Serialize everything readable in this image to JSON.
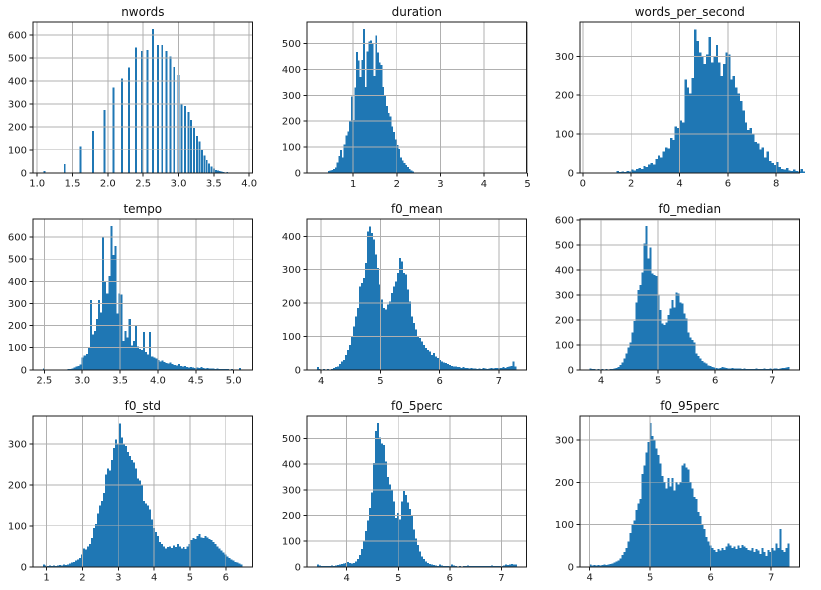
{
  "figure": {
    "background": "#ffffff",
    "bar_color": "#1f77b4",
    "grid_color": "#b0b0b0",
    "spine_color": "#1a1a1a",
    "text_color": "#1a1a1a"
  },
  "chart_data": [
    {
      "type": "bar",
      "subtype": "histogram",
      "title": "nwords",
      "xlim": [
        0.94,
        4.05
      ],
      "ylim": [
        0,
        656
      ],
      "xtick_vals": [
        1.0,
        1.5,
        2.0,
        2.5,
        3.0,
        3.5,
        4.0
      ],
      "xtick_labels": [
        "1.0",
        "1.5",
        "2.0",
        "2.5",
        "3.0",
        "3.5",
        "4.0"
      ],
      "ytick_vals": [
        0,
        100,
        200,
        300,
        400,
        500,
        600
      ],
      "grid": true,
      "bars": {
        "mode": "positions",
        "width": 0.028,
        "positions": [
          1.1,
          1.39,
          1.61,
          1.79,
          1.95,
          2.08,
          2.2,
          2.3,
          2.4,
          2.48,
          2.56,
          2.64,
          2.71,
          2.77,
          2.83,
          2.89,
          2.94,
          3.0,
          3.04,
          3.09,
          3.14,
          3.18,
          3.22,
          3.26,
          3.3,
          3.33,
          3.37,
          3.4,
          3.43,
          3.47,
          3.5,
          3.53,
          3.56,
          3.58,
          3.61,
          3.64,
          3.69,
          3.74,
          3.78,
          3.83,
          3.87,
          3.91
        ],
        "counts": [
          8,
          38,
          115,
          182,
          272,
          370,
          410,
          458,
          545,
          530,
          535,
          625,
          555,
          555,
          530,
          505,
          460,
          425,
          300,
          290,
          265,
          230,
          195,
          160,
          135,
          100,
          75,
          55,
          40,
          28,
          18,
          12,
          9,
          7,
          5,
          4,
          3,
          2,
          2,
          1,
          1,
          1
        ]
      }
    },
    {
      "type": "bar",
      "subtype": "histogram",
      "title": "duration",
      "xlim": [
        -0.06,
        4.98
      ],
      "ylim": [
        0,
        584
      ],
      "xtick_vals": [
        1,
        2,
        3,
        4,
        5
      ],
      "xtick_labels": [
        "1",
        "2",
        "3",
        "4",
        "5"
      ],
      "ytick_vals": [
        0,
        100,
        200,
        300,
        400,
        500
      ],
      "grid": true,
      "bars": {
        "mode": "sequence",
        "start": 0.42,
        "width": 0.0404,
        "counts": [
          6,
          8,
          10,
          14,
          20,
          40,
          65,
          88,
          60,
          110,
          145,
          160,
          200,
          295,
          205,
          330,
          467,
          435,
          370,
          437,
          556,
          333,
          470,
          508,
          512,
          500,
          375,
          532,
          465,
          428,
          418,
          332,
          298,
          258,
          232,
          218,
          180,
          158,
          128,
          108,
          93,
          60,
          47,
          38,
          30,
          22,
          14,
          8,
          5,
          2,
          1,
          0,
          1,
          0,
          0,
          1,
          0,
          0,
          1,
          0,
          0,
          0,
          1,
          0,
          0,
          0,
          0,
          1,
          0,
          0,
          0,
          1,
          0,
          0,
          0,
          0,
          0,
          1,
          0,
          0,
          0,
          0,
          0,
          1,
          0,
          0,
          0,
          0,
          0,
          0,
          1,
          0,
          0,
          0,
          0,
          0,
          0,
          0,
          0,
          0,
          1,
          0,
          0,
          0,
          0,
          1
        ]
      }
    },
    {
      "type": "bar",
      "subtype": "histogram",
      "title": "words_per_second",
      "xlim": [
        -0.12,
        8.97
      ],
      "ylim": [
        0,
        389
      ],
      "xtick_vals": [
        0,
        2,
        4,
        6,
        8
      ],
      "xtick_labels": [
        "0",
        "2",
        "4",
        "6",
        "8"
      ],
      "ytick_vals": [
        0,
        100,
        200,
        300
      ],
      "grid": true,
      "bars": {
        "mode": "sequence",
        "start": 0.3,
        "width": 0.1,
        "counts": [
          1,
          0,
          1,
          0,
          0,
          1,
          0,
          1,
          0,
          0,
          1,
          4,
          2,
          3,
          2,
          5,
          3,
          8,
          6,
          10,
          12,
          10,
          18,
          15,
          22,
          25,
          22,
          35,
          45,
          40,
          55,
          65,
          62,
          90,
          85,
          120,
          115,
          135,
          130,
          240,
          220,
          205,
          245,
          370,
          340,
          310,
          300,
          280,
          305,
          350,
          285,
          300,
          330,
          285,
          250,
          280,
          310,
          305,
          240,
          250,
          220,
          205,
          185,
          160,
          130,
          110,
          115,
          100,
          80,
          75,
          60,
          65,
          40,
          55,
          30,
          25,
          20,
          28,
          15,
          10,
          8,
          12,
          6,
          5,
          8,
          4,
          3,
          10,
          3
        ]
      }
    },
    {
      "type": "bar",
      "subtype": "histogram",
      "title": "tempo",
      "xlim": [
        2.35,
        5.25
      ],
      "ylim": [
        0,
        682
      ],
      "xtick_vals": [
        2.5,
        3.0,
        3.5,
        4.0,
        4.5,
        5.0
      ],
      "xtick_labels": [
        "2.5",
        "3.0",
        "3.5",
        "4.0",
        "4.5",
        "5.0"
      ],
      "ytick_vals": [
        0,
        100,
        200,
        300,
        400,
        500,
        600
      ],
      "grid": true,
      "bars": {
        "mode": "sequence",
        "start": 2.48,
        "width": 0.027,
        "counts": [
          5,
          0,
          0,
          0,
          0,
          0,
          0,
          0,
          0,
          0,
          0,
          0,
          3,
          4,
          6,
          10,
          14,
          18,
          24,
          55,
          65,
          72,
          100,
          315,
          160,
          175,
          230,
          315,
          260,
          600,
          400,
          345,
          425,
          650,
          520,
          560,
          255,
          345,
          340,
          130,
          175,
          145,
          230,
          110,
          130,
          200,
          105,
          95,
          90,
          170,
          80,
          70,
          170,
          60,
          55,
          50,
          45,
          38,
          42,
          35,
          30,
          28,
          32,
          25,
          22,
          20,
          25,
          18,
          15,
          18,
          12,
          10,
          12,
          10,
          8,
          10,
          8,
          12,
          7,
          6,
          8,
          5,
          6,
          5,
          4,
          5,
          4,
          3,
          4,
          3,
          3,
          2,
          3,
          2,
          2,
          2,
          8,
          2
        ]
      }
    },
    {
      "type": "bar",
      "subtype": "histogram",
      "title": "f0_mean",
      "xlim": [
        3.76,
        7.47
      ],
      "ylim": [
        0,
        452
      ],
      "xtick_vals": [
        4,
        5,
        6,
        7
      ],
      "xtick_labels": [
        "4",
        "5",
        "6",
        "7"
      ],
      "ytick_vals": [
        0,
        100,
        200,
        300,
        400
      ],
      "grid": true,
      "bars": {
        "mode": "sequence",
        "start": 3.93,
        "width": 0.0337,
        "counts": [
          8,
          2,
          1,
          2,
          1,
          2,
          1,
          2,
          5,
          8,
          10,
          18,
          25,
          30,
          45,
          60,
          75,
          100,
          130,
          160,
          185,
          250,
          260,
          275,
          320,
          415,
          430,
          410,
          390,
          345,
          305,
          255,
          210,
          185,
          180,
          195,
          205,
          230,
          250,
          265,
          290,
          335,
          325,
          290,
          285,
          240,
          205,
          160,
          140,
          120,
          100,
          95,
          85,
          75,
          65,
          60,
          55,
          45,
          50,
          40,
          35,
          30,
          25,
          22,
          20,
          18,
          15,
          12,
          10,
          10,
          8,
          8,
          6,
          8,
          5,
          5,
          4,
          5,
          4,
          4,
          3,
          4,
          3,
          5,
          4,
          3,
          4,
          5,
          4,
          6,
          5,
          6,
          5,
          8,
          6,
          8,
          10,
          12,
          25,
          10
        ]
      }
    },
    {
      "type": "bar",
      "subtype": "histogram",
      "title": "f0_median",
      "xlim": [
        3.63,
        7.48
      ],
      "ylim": [
        0,
        604
      ],
      "xtick_vals": [
        4,
        5,
        6,
        7
      ],
      "xtick_labels": [
        "4",
        "5",
        "6",
        "7"
      ],
      "ytick_vals": [
        0,
        100,
        200,
        300,
        400,
        500,
        600
      ],
      "grid": true,
      "bars": {
        "mode": "sequence",
        "start": 3.8,
        "width": 0.035,
        "counts": [
          5,
          3,
          4,
          2,
          3,
          2,
          3,
          2,
          3,
          2,
          3,
          4,
          5,
          8,
          12,
          20,
          30,
          45,
          65,
          90,
          110,
          150,
          195,
          270,
          320,
          340,
          390,
          505,
          575,
          445,
          490,
          385,
          380,
          375,
          300,
          240,
          185,
          180,
          190,
          220,
          245,
          280,
          250,
          310,
          305,
          270,
          265,
          225,
          205,
          150,
          130,
          120,
          110,
          65,
          55,
          45,
          35,
          30,
          25,
          18,
          15,
          12,
          10,
          8,
          6,
          8,
          12,
          10,
          8,
          6,
          5,
          8,
          6,
          5,
          6,
          5,
          4,
          5,
          4,
          3,
          4,
          3,
          4,
          5,
          4,
          3,
          4,
          5,
          4,
          3,
          5,
          4,
          6,
          5,
          4,
          6,
          8,
          7,
          10,
          12
        ]
      }
    },
    {
      "type": "bar",
      "subtype": "histogram",
      "title": "f0_std",
      "xlim": [
        0.62,
        6.75
      ],
      "ylim": [
        0,
        368
      ],
      "xtick_vals": [
        1,
        2,
        3,
        4,
        5,
        6
      ],
      "xtick_labels": [
        "1",
        "2",
        "3",
        "4",
        "5",
        "6"
      ],
      "ytick_vals": [
        0,
        100,
        200,
        300
      ],
      "grid": true,
      "bars": {
        "mode": "sequence",
        "start": 0.9,
        "width": 0.0557,
        "counts": [
          5,
          3,
          2,
          3,
          2,
          3,
          2,
          3,
          4,
          3,
          5,
          4,
          6,
          8,
          10,
          12,
          15,
          18,
          22,
          30,
          45,
          42,
          50,
          55,
          70,
          95,
          105,
          130,
          150,
          160,
          180,
          225,
          240,
          235,
          260,
          290,
          310,
          300,
          350,
          315,
          300,
          295,
          280,
          270,
          260,
          255,
          240,
          215,
          210,
          200,
          160,
          155,
          150,
          140,
          115,
          95,
          85,
          75,
          60,
          55,
          50,
          45,
          48,
          50,
          46,
          52,
          48,
          55,
          50,
          45,
          48,
          44,
          50,
          55,
          65,
          70,
          68,
          75,
          80,
          72,
          70,
          75,
          72,
          68,
          65,
          60,
          55,
          50,
          45,
          40,
          35,
          30,
          25,
          22,
          18,
          15,
          12,
          10,
          8,
          5
        ]
      }
    },
    {
      "type": "bar",
      "subtype": "histogram",
      "title": "f0_5perc",
      "xlim": [
        3.23,
        7.49
      ],
      "ylim": [
        0,
        588
      ],
      "xtick_vals": [
        4,
        5,
        6,
        7
      ],
      "xtick_labels": [
        "4",
        "5",
        "6",
        "7"
      ],
      "ytick_vals": [
        0,
        100,
        200,
        300,
        400,
        500
      ],
      "grid": true,
      "bars": {
        "mode": "sequence",
        "start": 3.42,
        "width": 0.0388,
        "counts": [
          8,
          5,
          3,
          4,
          3,
          4,
          3,
          5,
          4,
          5,
          6,
          8,
          10,
          12,
          15,
          18,
          15,
          12,
          15,
          20,
          30,
          45,
          70,
          100,
          140,
          180,
          230,
          290,
          405,
          530,
          560,
          505,
          480,
          475,
          410,
          350,
          320,
          300,
          255,
          190,
          210,
          185,
          255,
          295,
          280,
          250,
          225,
          200,
          145,
          110,
          85,
          60,
          40,
          30,
          20,
          15,
          10,
          8,
          6,
          5,
          4,
          8,
          5,
          4,
          3,
          4,
          3,
          8,
          5,
          3,
          2,
          3,
          2,
          3,
          4,
          5,
          4,
          3,
          4,
          3,
          4,
          3,
          4,
          3,
          4,
          3,
          4,
          5,
          4,
          3,
          4,
          3,
          4,
          5,
          8,
          6,
          8,
          10,
          8,
          8
        ]
      }
    },
    {
      "type": "bar",
      "subtype": "histogram",
      "title": "f0_95perc",
      "xlim": [
        3.84,
        7.47
      ],
      "ylim": [
        0,
        357
      ],
      "xtick_vals": [
        4,
        5,
        6,
        7
      ],
      "xtick_labels": [
        "4",
        "5",
        "6",
        "7"
      ],
      "ytick_vals": [
        0,
        100,
        200,
        300
      ],
      "grid": true,
      "bars": {
        "mode": "sequence",
        "start": 4.0,
        "width": 0.033,
        "counts": [
          5,
          3,
          4,
          3,
          4,
          3,
          4,
          5,
          4,
          5,
          6,
          8,
          10,
          12,
          15,
          20,
          28,
          35,
          45,
          60,
          80,
          100,
          110,
          135,
          150,
          160,
          220,
          240,
          270,
          295,
          340,
          310,
          300,
          280,
          265,
          245,
          215,
          200,
          185,
          210,
          190,
          210,
          180,
          200,
          195,
          200,
          240,
          245,
          235,
          230,
          200,
          185,
          165,
          160,
          130,
          120,
          100,
          90,
          70,
          60,
          50,
          45,
          40,
          35,
          42,
          38,
          45,
          40,
          48,
          55,
          50,
          45,
          48,
          42,
          50,
          45,
          52,
          48,
          45,
          40,
          38,
          45,
          35,
          42,
          38,
          30,
          45,
          35,
          25,
          40,
          35,
          45,
          38,
          55,
          45,
          90,
          40,
          35,
          45,
          55
        ]
      }
    }
  ]
}
